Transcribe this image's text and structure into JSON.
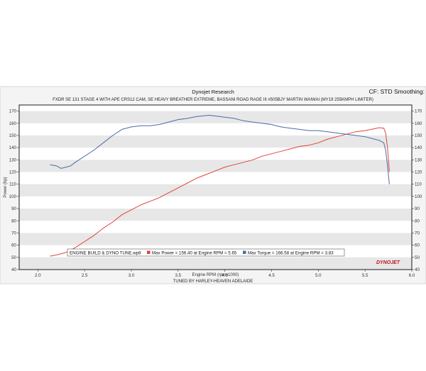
{
  "header": {
    "title": "Dynojet Research",
    "subtitle": "FXDR SE 131 STAGE 4 WITH APE CRS12 CAM, SE HEAVY BREATHER EXTREME, BASSANI ROAD RAGE III #505BJY MARTIN WAIWAI (MY19 255KMPH LIMITER)",
    "right_info": "CF: STD Smoothing:"
  },
  "footer": {
    "credit": "TUNED BY HARLEY-HEAVEN ADELAIDE",
    "logo_text": "DYNOJET"
  },
  "colors": {
    "power": "#e0443c",
    "torque": "#4d6aa8",
    "band": "#e7e7e7",
    "frame": "#1b1b1b"
  },
  "chart_data": {
    "type": "line",
    "title": "Dynojet Research",
    "xlabel": "Engine RPM  (rpmx1000)",
    "ylabel": "Power (hp)",
    "xlim": [
      1.8,
      6.0
    ],
    "ylim": [
      40,
      175
    ],
    "x_ticks": [
      2.0,
      2.5,
      3.0,
      3.5,
      4.0,
      4.5,
      5.0,
      5.5,
      6.0
    ],
    "x_tick_labels": [
      "2.0",
      "2.5",
      "3.0",
      "3.5",
      "4.0",
      "4.5",
      "5.0",
      "5.5",
      "6.0"
    ],
    "y_ticks": [
      40,
      50,
      60,
      70,
      80,
      90,
      100,
      110,
      120,
      130,
      140,
      150,
      160,
      170
    ],
    "y_tick_labels": [
      "40",
      "50",
      "60",
      "70",
      "80",
      "90",
      "100",
      "110",
      "120",
      "130",
      "140",
      "150",
      "160",
      "170"
    ],
    "grid": "alternating-horizontal-bands",
    "legend": {
      "placement": "bottom",
      "run_name": "ENGINE BUILD & DYNO TUNE.wp8",
      "entries": [
        "Max Power = 156.40 at Engine RPM = 5.65",
        "Max Torque = 166.58 at Engine RPM = 3.83"
      ]
    },
    "series": [
      {
        "name": "Max Power",
        "color": "#e0443c",
        "x": [
          2.13,
          2.2,
          2.3,
          2.4,
          2.5,
          2.6,
          2.7,
          2.8,
          2.9,
          3.0,
          3.1,
          3.2,
          3.3,
          3.4,
          3.5,
          3.6,
          3.7,
          3.8,
          3.9,
          4.0,
          4.1,
          4.2,
          4.3,
          4.4,
          4.5,
          4.6,
          4.7,
          4.8,
          4.9,
          5.0,
          5.1,
          5.2,
          5.3,
          5.4,
          5.5,
          5.6,
          5.65,
          5.7,
          5.72,
          5.74,
          5.76
        ],
        "y": [
          51,
          52,
          54,
          58,
          63,
          68,
          74,
          79,
          85,
          89,
          93,
          96,
          99,
          103,
          107,
          111,
          115,
          118,
          121,
          124,
          126,
          128,
          130,
          133,
          135,
          137,
          139,
          141,
          142,
          144,
          147,
          149,
          151,
          153,
          154,
          155.5,
          156.4,
          156,
          152,
          140,
          120
        ]
      },
      {
        "name": "Max Torque",
        "color": "#4d6aa8",
        "x": [
          2.13,
          2.2,
          2.25,
          2.3,
          2.35,
          2.4,
          2.5,
          2.6,
          2.7,
          2.8,
          2.9,
          3.0,
          3.1,
          3.2,
          3.3,
          3.4,
          3.5,
          3.6,
          3.7,
          3.83,
          3.9,
          4.0,
          4.1,
          4.2,
          4.3,
          4.4,
          4.5,
          4.6,
          4.7,
          4.8,
          4.9,
          5.0,
          5.1,
          5.2,
          5.3,
          5.4,
          5.5,
          5.6,
          5.65,
          5.7,
          5.72,
          5.74,
          5.76
        ],
        "y": [
          126,
          125,
          123,
          124,
          125,
          128,
          133,
          138,
          144,
          150,
          155,
          157,
          158,
          158,
          159,
          161,
          163,
          164,
          165.5,
          166.58,
          166,
          165,
          164,
          162,
          161,
          160,
          159,
          157,
          156,
          155,
          154,
          154,
          153,
          152,
          151,
          150,
          149,
          147,
          146,
          144,
          138,
          125,
          110
        ]
      }
    ]
  }
}
